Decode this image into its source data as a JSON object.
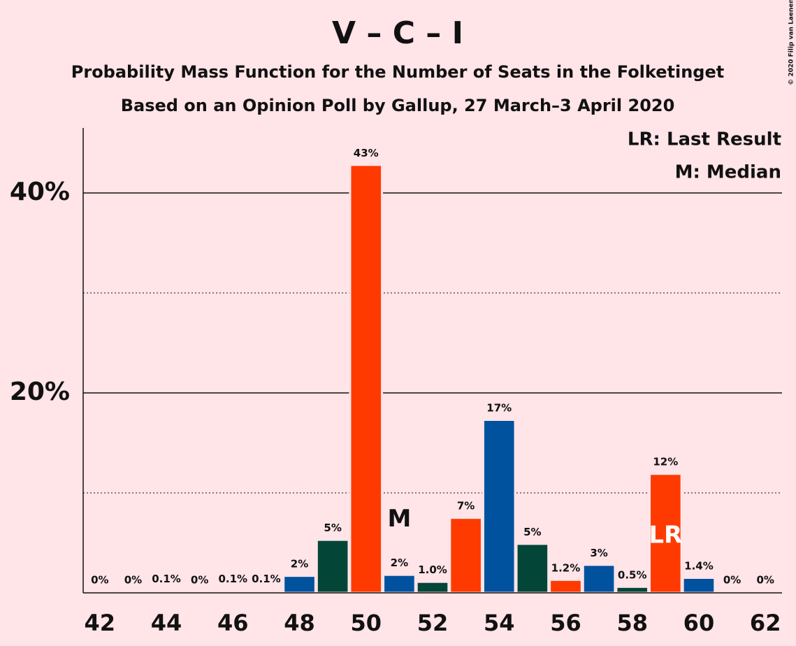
{
  "chart_data": {
    "type": "bar",
    "title": "V – C – I",
    "subtitle": [
      "Probability Mass Function for the Number of Seats in the Folketinget",
      "Based on an Opinion Poll by Gallup, 27 March–3 April 2020"
    ],
    "legend": [
      "LR: Last Result",
      "M: Median"
    ],
    "copyright": "© 2020 Filip van Laenen",
    "x": [
      42,
      43,
      44,
      45,
      46,
      47,
      48,
      49,
      50,
      51,
      52,
      53,
      54,
      55,
      56,
      57,
      58,
      59,
      60,
      61,
      62
    ],
    "values": [
      0,
      0,
      0.1,
      0,
      0.1,
      0.1,
      1.6,
      5.2,
      42.7,
      1.7,
      1.0,
      7.4,
      17.2,
      4.8,
      1.2,
      2.7,
      0.5,
      11.8,
      1.4,
      0,
      0
    ],
    "value_labels": [
      "0%",
      "0%",
      "0.1%",
      "0%",
      "0.1%",
      "0.1%",
      "2%",
      "5%",
      "43%",
      "2%",
      "1.0%",
      "7%",
      "17%",
      "5%",
      "1.2%",
      "3%",
      "0.5%",
      "12%",
      "1.4%",
      "0%",
      "0%"
    ],
    "colors": [
      "#00529f",
      "#034638",
      "#ff3a00",
      "#00529f",
      "#034638",
      "#ff3a00",
      "#00529f",
      "#034638",
      "#ff3a00",
      "#00529f",
      "#034638",
      "#ff3a00",
      "#00529f",
      "#034638",
      "#ff3a00",
      "#00529f",
      "#034638",
      "#ff3a00",
      "#00529f",
      "#034638",
      "#ff3a00"
    ],
    "annotations": [
      {
        "x": 51,
        "text": "M",
        "color": "#111111"
      },
      {
        "x": 59,
        "text": "LR",
        "color": "#ffffff"
      }
    ],
    "xlim": [
      41.5,
      62.5
    ],
    "xticks": [
      42,
      44,
      46,
      48,
      50,
      52,
      54,
      56,
      58,
      60,
      62
    ],
    "ylim": [
      0,
      46.5
    ],
    "yticks": [
      {
        "value": 20,
        "label": "20%"
      },
      {
        "value": 40,
        "label": "40%"
      }
    ],
    "minor_yticks": [
      10,
      30
    ],
    "grid": true
  }
}
